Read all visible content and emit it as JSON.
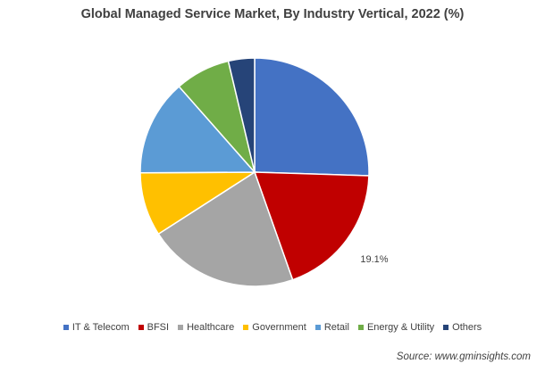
{
  "chart_data": {
    "type": "pie",
    "title": "Global Managed Service Market, By Industry Vertical, 2022 (%)",
    "categories": [
      "IT & Telecom",
      "BFSI",
      "Healthcare",
      "Government",
      "Retail",
      "Energy & Utility",
      "Others"
    ],
    "values": [
      25.5,
      19.1,
      21.3,
      9.0,
      13.6,
      7.8,
      3.7
    ],
    "colors": [
      "#4472C4",
      "#C00000",
      "#A5A5A5",
      "#FFC000",
      "#5B9BD5",
      "#70AD47",
      "#264478"
    ],
    "data_labels": [
      {
        "category": "BFSI",
        "text": "19.1%"
      }
    ],
    "start_angle_deg": 0,
    "direction": "clockwise",
    "legend_position": "bottom"
  },
  "source": "Source: www.gminsights.com"
}
